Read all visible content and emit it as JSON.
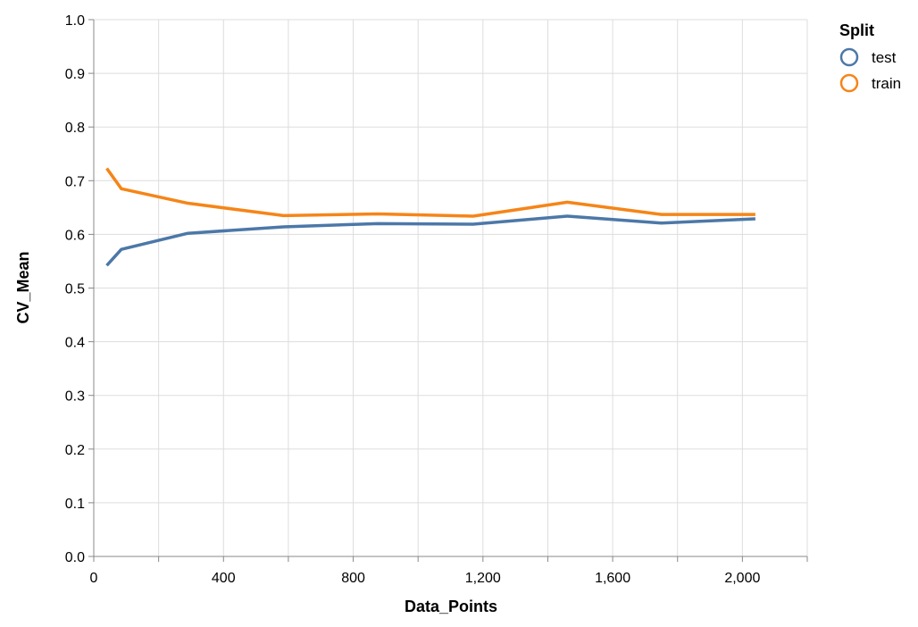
{
  "colors": {
    "test": "#4c78a8",
    "train": "#f58518",
    "grid": "#dddddd",
    "axis": "#888888"
  },
  "legend": {
    "title": "Split",
    "items": [
      {
        "label": "test",
        "color": "#4c78a8"
      },
      {
        "label": "train",
        "color": "#f58518"
      }
    ]
  },
  "chart_data": {
    "type": "line",
    "xlabel": "Data_Points",
    "ylabel": "CV_Mean",
    "xlim": [
      0,
      2200
    ],
    "ylim": [
      0,
      1.0
    ],
    "x_ticks": [
      0,
      400,
      800,
      1200,
      1600,
      2000
    ],
    "x_tick_labels": [
      "0",
      "400",
      "800",
      "1,200",
      "1,600",
      "2,000"
    ],
    "x_minor_ticks": [
      200,
      600,
      1000,
      1400,
      1800,
      2200
    ],
    "y_ticks": [
      0.0,
      0.1,
      0.2,
      0.3,
      0.4,
      0.5,
      0.6,
      0.7,
      0.8,
      0.9,
      1.0
    ],
    "y_tick_labels": [
      "0.0",
      "0.1",
      "0.2",
      "0.3",
      "0.4",
      "0.5",
      "0.6",
      "0.7",
      "0.8",
      "0.9",
      "1.0"
    ],
    "grid": true,
    "legend_position": "top-right",
    "series": [
      {
        "name": "test",
        "x": [
          40,
          85,
          290,
          585,
          875,
          1170,
          1460,
          1750,
          2040
        ],
        "values": [
          0.542,
          0.572,
          0.602,
          0.614,
          0.62,
          0.619,
          0.634,
          0.621,
          0.629
        ]
      },
      {
        "name": "train",
        "x": [
          40,
          85,
          290,
          585,
          875,
          1170,
          1460,
          1750,
          2040
        ],
        "values": [
          0.723,
          0.685,
          0.658,
          0.635,
          0.638,
          0.634,
          0.66,
          0.637,
          0.637
        ]
      }
    ]
  }
}
